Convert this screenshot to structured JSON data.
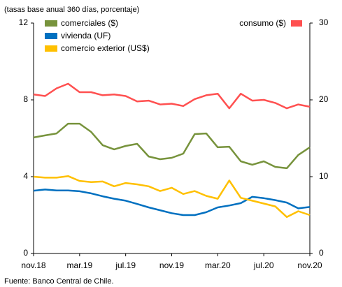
{
  "chart_data": {
    "type": "line",
    "subtitle": "(tasas base anual 360 días, porcentaje)",
    "note": "Fuente: Banco Central de Chile.",
    "categories": [
      "nov.18",
      null,
      null,
      null,
      "mar.19",
      null,
      null,
      null,
      "jul.19",
      null,
      null,
      null,
      "nov.19",
      null,
      null,
      null,
      "mar.20",
      null,
      null,
      null,
      "jul.20",
      null,
      null,
      null,
      "nov.20"
    ],
    "ylim": [
      0,
      12
    ],
    "yticks": [
      0,
      4,
      8,
      12
    ],
    "y2lim": [
      0,
      30
    ],
    "y2ticks": [
      0,
      10,
      20,
      30
    ],
    "series": [
      {
        "name": "comerciales ($)",
        "color": "#77933c",
        "values": [
          6.04,
          6.15,
          6.25,
          6.76,
          6.76,
          6.33,
          5.64,
          5.42,
          5.6,
          5.71,
          5.05,
          4.91,
          4.98,
          5.2,
          6.22,
          6.25,
          5.53,
          5.56,
          4.8,
          4.62,
          4.8,
          4.51,
          4.44,
          5.13,
          5.53
        ]
      },
      {
        "name": "vivienda (UF)",
        "color": "#0070c0",
        "values": [
          3.27,
          3.33,
          3.28,
          3.28,
          3.24,
          3.13,
          2.98,
          2.85,
          2.75,
          2.58,
          2.4,
          2.25,
          2.1,
          2.0,
          2.0,
          2.15,
          2.4,
          2.5,
          2.62,
          2.95,
          2.88,
          2.78,
          2.65,
          2.35,
          2.42
        ]
      },
      {
        "name": "comercio exterior (US$)",
        "color": "#ffc000",
        "values": [
          4.0,
          3.95,
          3.95,
          4.03,
          3.78,
          3.72,
          3.75,
          3.5,
          3.67,
          3.6,
          3.5,
          3.25,
          3.42,
          3.1,
          3.25,
          3.0,
          2.85,
          3.8,
          2.9,
          2.75,
          2.6,
          2.45,
          1.9,
          2.2,
          2.0
        ]
      },
      {
        "name": "consumo ($)",
        "color": "#ff5050",
        "axis": "y2",
        "values": [
          20.7,
          20.5,
          21.5,
          22.1,
          21.0,
          21.0,
          20.6,
          20.7,
          20.5,
          19.8,
          19.9,
          19.4,
          19.5,
          19.2,
          20.1,
          20.6,
          20.8,
          18.9,
          20.8,
          19.9,
          20.0,
          19.6,
          18.9,
          19.4,
          19.1
        ]
      }
    ]
  }
}
